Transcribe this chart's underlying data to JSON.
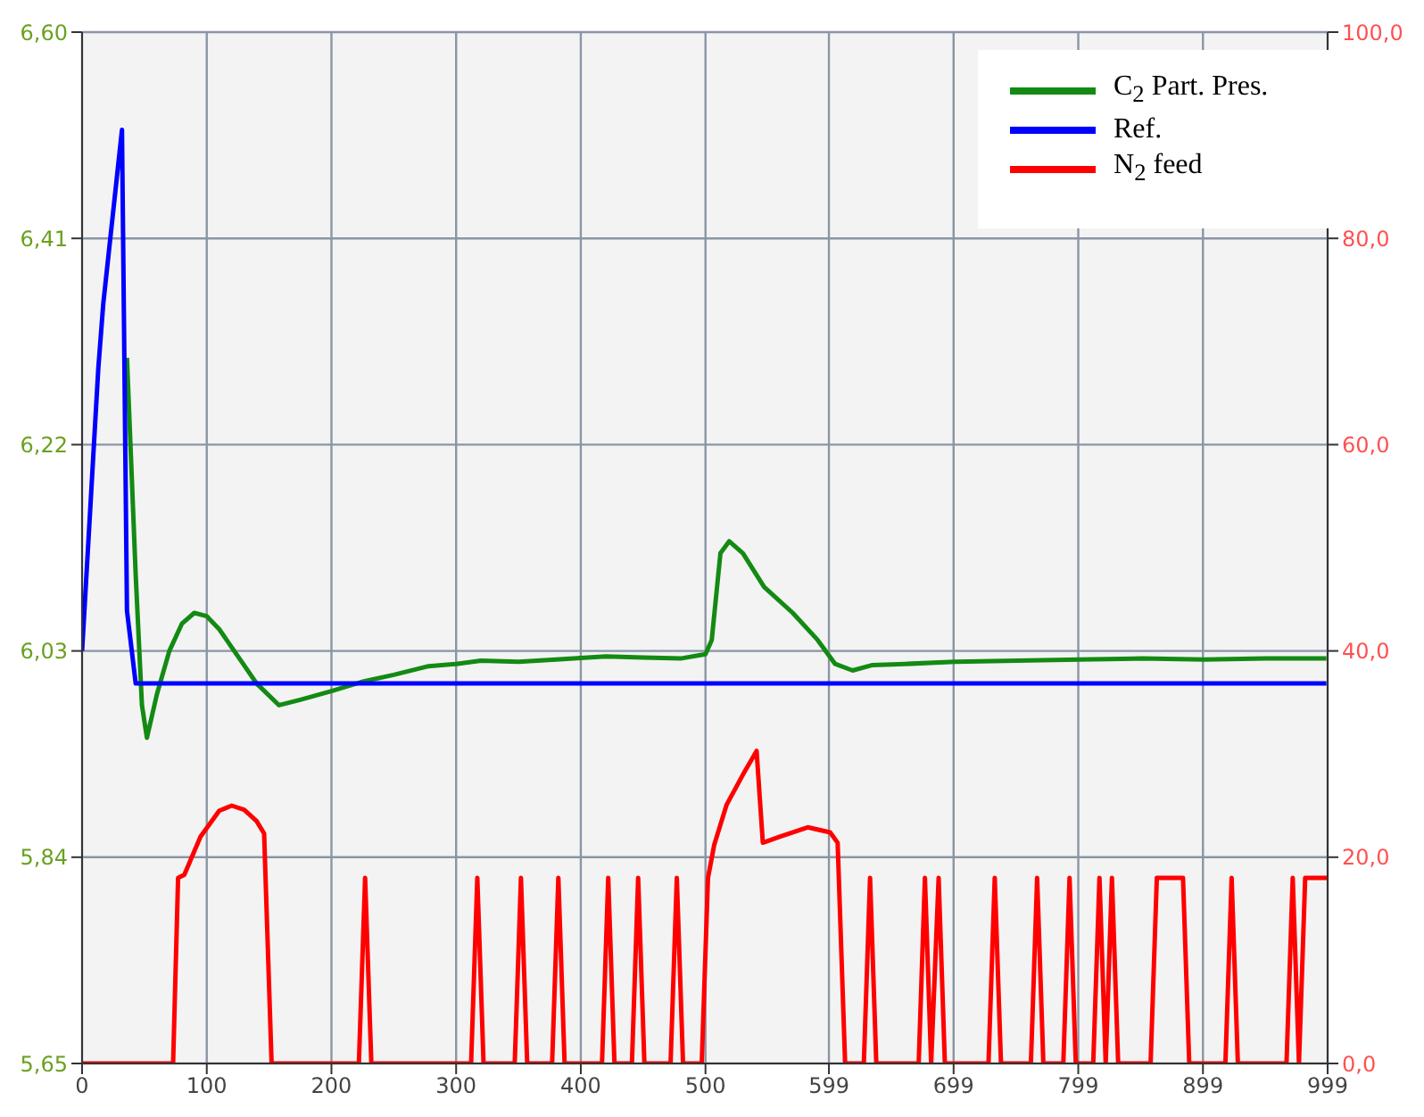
{
  "chart_data": {
    "type": "line",
    "xlim": [
      0,
      999
    ],
    "xticks": [
      0,
      100,
      200,
      300,
      400,
      500,
      599,
      699,
      799,
      899,
      999
    ],
    "ylim": [
      5.65,
      6.6
    ],
    "yticks": [
      {
        "value": 5.65,
        "label": "5,65"
      },
      {
        "value": 5.84,
        "label": "5,84"
      },
      {
        "value": 6.03,
        "label": "6,03"
      },
      {
        "value": 6.22,
        "label": "6,22"
      },
      {
        "value": 6.41,
        "label": "6,41"
      },
      {
        "value": 6.6,
        "label": "6,60"
      }
    ],
    "y2lim": [
      0,
      100
    ],
    "y2ticks": [
      {
        "value": 0,
        "label": "0,0"
      },
      {
        "value": 20,
        "label": "20,0"
      },
      {
        "value": 40,
        "label": "40,0"
      },
      {
        "value": 60,
        "label": "60,0"
      },
      {
        "value": 80,
        "label": "80,0"
      },
      {
        "value": 100,
        "label": "100,0"
      }
    ],
    "grid": true,
    "legend": "top right",
    "marker": "none",
    "line_style": "solid",
    "series": [
      {
        "name": "C$_{2}$ Part. Pres.",
        "color": "#138a13",
        "x": [
          36,
          43,
          48,
          52,
          60,
          70,
          80,
          90,
          100,
          110,
          125,
          140,
          158,
          175,
          200,
          226,
          250,
          278,
          300,
          320,
          350,
          380,
          420,
          450,
          480,
          500,
          505,
          512,
          519,
          530,
          547,
          570,
          590,
          604,
          618,
          634,
          660,
          700,
          750,
          800,
          850,
          900,
          950,
          998
        ],
        "values": [
          6.3,
          6.1,
          5.98,
          5.95,
          5.99,
          6.03,
          6.055,
          6.065,
          6.062,
          6.05,
          6.025,
          6.0,
          5.98,
          5.985,
          5.993,
          6.002,
          6.008,
          6.016,
          6.018,
          6.021,
          6.02,
          6.022,
          6.025,
          6.024,
          6.023,
          6.027,
          6.04,
          6.12,
          6.131,
          6.12,
          6.089,
          6.065,
          6.04,
          6.018,
          6.012,
          6.017,
          6.018,
          6.02,
          6.021,
          6.022,
          6.023,
          6.022,
          6.023,
          6.023
        ]
      },
      {
        "name": "Ref.",
        "color": "#0000ff",
        "x": [
          0,
          13,
          17,
          32,
          36,
          43,
          998
        ],
        "values": [
          6.03,
          6.29,
          6.35,
          6.51,
          6.067,
          6.0,
          6.0
        ]
      },
      {
        "name": "N$_{2}$ feed",
        "color": "#ff0000",
        "axis": "y2",
        "x": [
          0,
          73,
          77,
          82,
          95,
          110,
          120,
          130,
          140,
          146,
          152,
          222,
          227,
          232,
          312,
          317,
          322,
          347,
          352,
          357,
          377,
          382,
          387,
          417,
          422,
          427,
          441,
          446,
          451,
          472,
          477,
          482,
          497,
          502,
          507,
          517,
          530,
          541,
          546,
          560,
          582,
          600,
          606,
          612,
          627,
          632,
          637,
          671,
          676,
          681,
          687,
          692,
          727,
          732,
          737,
          761,
          766,
          771,
          787,
          792,
          797,
          811,
          816,
          821,
          826,
          831,
          857,
          862,
          883,
          888,
          917,
          922,
          927,
          966,
          971,
          976,
          981,
          999
        ],
        "values": [
          0,
          0,
          18,
          18.3,
          22,
          24.5,
          25,
          24.6,
          23.5,
          22.3,
          0,
          0,
          18,
          0,
          0,
          18,
          0,
          0,
          18,
          0,
          0,
          18,
          0,
          0,
          18,
          0,
          0,
          18,
          0,
          0,
          18,
          0,
          0,
          18,
          21.2,
          25.1,
          28,
          30.3,
          21.4,
          22,
          22.9,
          22.4,
          21.4,
          0,
          0,
          18,
          0,
          0,
          18,
          0,
          18,
          0,
          0,
          18,
          0,
          0,
          18,
          0,
          0,
          18,
          0,
          0,
          18,
          0,
          18,
          0,
          0,
          18,
          18,
          0,
          0,
          18,
          0,
          0,
          18,
          0,
          18,
          18
        ]
      }
    ]
  }
}
